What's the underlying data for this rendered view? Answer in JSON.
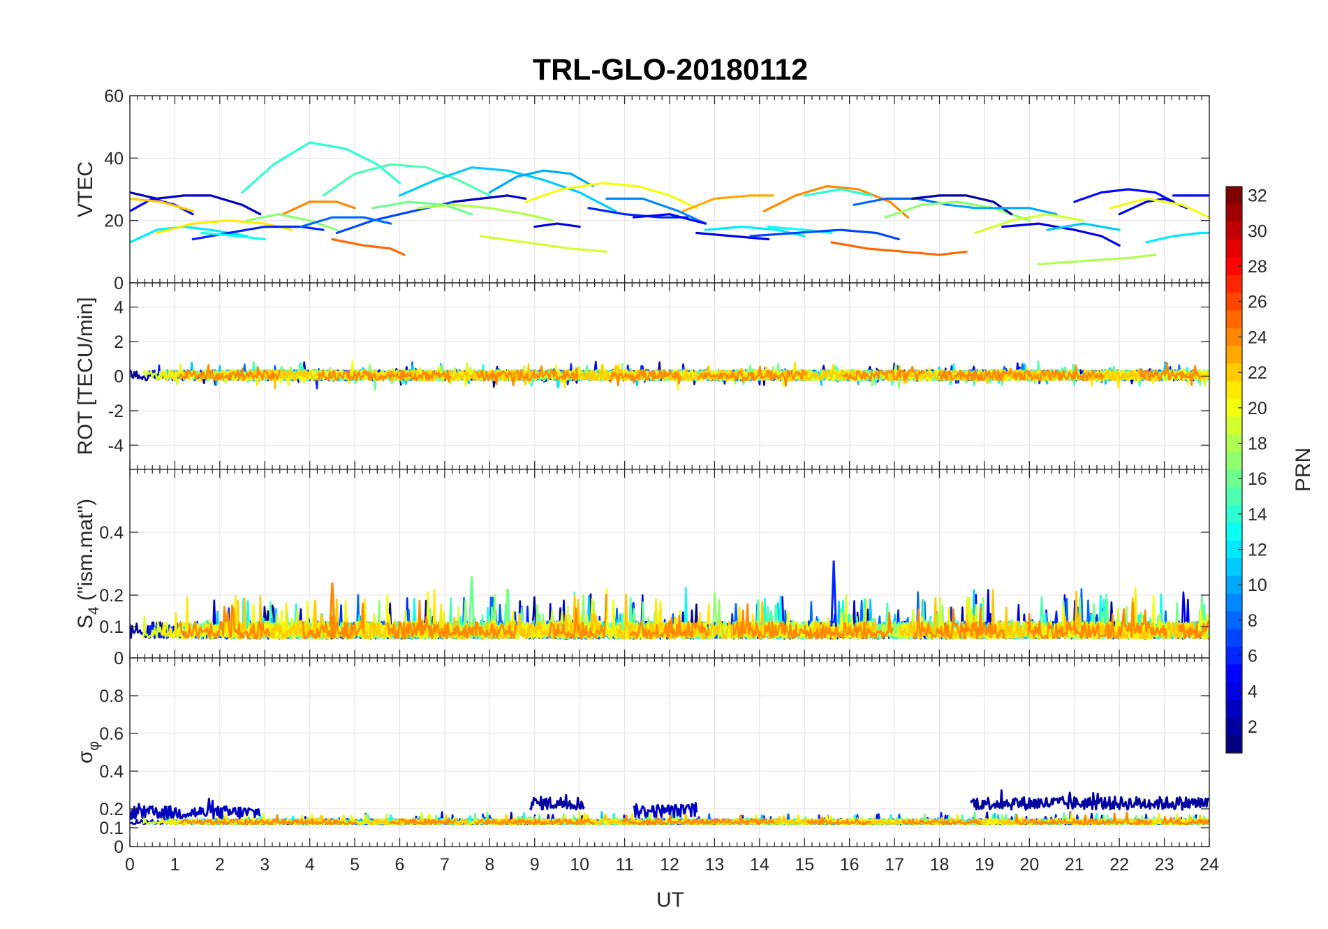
{
  "chart_data": {
    "type": "line",
    "title": "TRL-GLO-20180112",
    "xlabel": "UT",
    "xlim": [
      0,
      24
    ],
    "x_ticks": [
      "0",
      "1",
      "2",
      "3",
      "4",
      "5",
      "6",
      "7",
      "8",
      "9",
      "10",
      "11",
      "12",
      "13",
      "14",
      "15",
      "16",
      "17",
      "18",
      "19",
      "20",
      "21",
      "22",
      "23",
      "24"
    ],
    "colorbar": {
      "label": "PRN",
      "range": [
        1,
        32
      ],
      "colormap": "jet",
      "ticks": [
        "2",
        "4",
        "6",
        "8",
        "10",
        "12",
        "14",
        "16",
        "18",
        "20",
        "22",
        "24",
        "26",
        "28",
        "30",
        "32"
      ]
    },
    "panels": [
      {
        "id": "vtec",
        "ylabel": "VTEC",
        "ylim": [
          0,
          60
        ],
        "yticks": [
          0,
          20,
          40,
          60
        ],
        "ytick_labels": [
          "0",
          "20",
          "40",
          "60"
        ],
        "series": [
          {
            "prn": 14,
            "x": [
              2.5,
              3.2,
              4.0,
              4.8,
              5.5,
              6.0
            ],
            "y": [
              29,
              38,
              45,
              43,
              38,
              32
            ]
          },
          {
            "prn": 15,
            "x": [
              4.3,
              5.0,
              5.8,
              6.6,
              7.3,
              8.0
            ],
            "y": [
              28,
              35,
              38,
              37,
              33,
              28
            ]
          },
          {
            "prn": 11,
            "x": [
              6.0,
              6.8,
              7.6,
              8.4,
              9.2,
              10.0,
              10.8
            ],
            "y": [
              28,
              33,
              37,
              36,
              33,
              29,
              23
            ]
          },
          {
            "prn": 10,
            "x": [
              8.0,
              8.6,
              9.2,
              9.8,
              10.3
            ],
            "y": [
              29,
              34,
              36,
              35,
              31
            ]
          },
          {
            "prn": 20,
            "x": [
              8.8,
              9.6,
              10.5,
              11.3,
              12.0,
              12.6
            ],
            "y": [
              26,
              30,
              32,
              31,
              28,
              24
            ]
          },
          {
            "prn": 23,
            "x": [
              12.3,
              13.0,
              13.8,
              14.3
            ],
            "y": [
              23,
              27,
              28,
              28
            ]
          },
          {
            "prn": 24,
            "x": [
              14.1,
              14.8,
              15.5,
              16.2,
              16.9,
              17.3
            ],
            "y": [
              23,
              28,
              31,
              30,
              26,
              21
            ]
          },
          {
            "prn": 3,
            "x": [
              0,
              0.6,
              1.2,
              1.8,
              2.5,
              2.9
            ],
            "y": [
              29,
              27,
              28,
              28,
              25,
              22
            ]
          },
          {
            "prn": 5,
            "x": [
              0,
              0.5,
              1.0,
              1.4
            ],
            "y": [
              23,
              27,
              25,
              22
            ]
          },
          {
            "prn": 22,
            "x": [
              0,
              0.7,
              1.4
            ],
            "y": [
              27,
              26,
              23
            ]
          },
          {
            "prn": 12,
            "x": [
              0,
              0.6,
              1.2,
              1.8,
              2.6
            ],
            "y": [
              13,
              17,
              18,
              17,
              15
            ]
          },
          {
            "prn": 21,
            "x": [
              0.6,
              1.4,
              2.2,
              3.0,
              3.6
            ],
            "y": [
              16,
              19,
              20,
              19,
              17
            ]
          },
          {
            "prn": 6,
            "x": [
              1.4,
              2.2,
              3.0,
              3.8,
              4.3
            ],
            "y": [
              14,
              16,
              18,
              18,
              17
            ]
          },
          {
            "prn": 13,
            "x": [
              1.6,
              2.4,
              3.0
            ],
            "y": [
              16,
              15,
              14
            ]
          },
          {
            "prn": 24,
            "x": [
              3.4,
              4.0,
              4.6,
              5.0
            ],
            "y": [
              22,
              26,
              26,
              24
            ]
          },
          {
            "prn": 17,
            "x": [
              2.6,
              3.3,
              4.0,
              4.6
            ],
            "y": [
              20,
              22,
              20,
              17
            ]
          },
          {
            "prn": 7,
            "x": [
              4.6,
              5.4,
              6.0,
              6.6,
              7.2
            ],
            "y": [
              16,
              20,
              22,
              24,
              26
            ]
          },
          {
            "prn": 8,
            "x": [
              3.8,
              4.5,
              5.2,
              5.8
            ],
            "y": [
              18,
              21,
              21,
              19
            ]
          },
          {
            "prn": 16,
            "x": [
              5.4,
              6.2,
              7.0,
              7.6
            ],
            "y": [
              24,
              26,
              25,
              22
            ]
          },
          {
            "prn": 18,
            "x": [
              6.4,
              7.2,
              8.0,
              8.8,
              9.4
            ],
            "y": [
              24,
              25,
              24,
              22,
              20
            ]
          },
          {
            "prn": 25,
            "x": [
              4.5,
              5.2,
              5.8,
              6.1
            ],
            "y": [
              14,
              12,
              11,
              9
            ]
          },
          {
            "prn": 3,
            "x": [
              7.2,
              7.8,
              8.4,
              8.8
            ],
            "y": [
              26,
              27,
              28,
              27
            ]
          },
          {
            "prn": 4,
            "x": [
              9.0,
              9.5,
              10.0
            ],
            "y": [
              18,
              19,
              18
            ]
          },
          {
            "prn": 19,
            "x": [
              7.8,
              8.8,
              9.8,
              10.6
            ],
            "y": [
              15,
              13,
              11,
              10
            ]
          },
          {
            "prn": 6,
            "x": [
              10.2,
              11.0,
              11.8,
              12.4
            ],
            "y": [
              24,
              22,
              21,
              21
            ]
          },
          {
            "prn": 9,
            "x": [
              10.6,
              11.4,
              12.2,
              12.8
            ],
            "y": [
              27,
              27,
              23,
              19
            ]
          },
          {
            "prn": 5,
            "x": [
              11.2,
              12.0,
              12.8
            ],
            "y": [
              21,
              22,
              19
            ]
          },
          {
            "prn": 4,
            "x": [
              12.6,
              13.4,
              14.2
            ],
            "y": [
              16,
              15,
              14
            ]
          },
          {
            "prn": 12,
            "x": [
              12.8,
              13.6,
              14.4,
              15.0
            ],
            "y": [
              17,
              18,
              17,
              15
            ]
          },
          {
            "prn": 13,
            "x": [
              14.2,
              15.0,
              15.6
            ],
            "y": [
              18,
              17,
              16
            ]
          },
          {
            "prn": 7,
            "x": [
              13.8,
              14.8,
              15.8,
              16.6,
              17.1
            ],
            "y": [
              15,
              16,
              17,
              16,
              14
            ]
          },
          {
            "prn": 25,
            "x": [
              15.6,
              16.4,
              17.2,
              18.0,
              18.6
            ],
            "y": [
              13,
              11,
              10,
              9,
              10
            ]
          },
          {
            "prn": 14,
            "x": [
              15.0,
              15.8,
              16.5
            ],
            "y": [
              28,
              30,
              28
            ]
          },
          {
            "prn": 8,
            "x": [
              16.1,
              16.8,
              17.5,
              18.2
            ],
            "y": [
              25,
              27,
              27,
              25
            ]
          },
          {
            "prn": 17,
            "x": [
              16.8,
              17.6,
              18.4,
              19.2,
              20.0
            ],
            "y": [
              21,
              25,
              26,
              24,
              20
            ]
          },
          {
            "prn": 2,
            "x": [
              17.4,
              18.0,
              18.6,
              19.2,
              19.6
            ],
            "y": [
              27,
              28,
              28,
              26,
              22
            ]
          },
          {
            "prn": 10,
            "x": [
              18.2,
              18.8,
              19.4,
              20.0,
              20.6
            ],
            "y": [
              25,
              24,
              24,
              24,
              22
            ]
          },
          {
            "prn": 19,
            "x": [
              18.8,
              19.6,
              20.4,
              21.2
            ],
            "y": [
              16,
              20,
              22,
              20
            ]
          },
          {
            "prn": 4,
            "x": [
              19.4,
              20.2,
              21.0,
              21.6,
              22.0
            ],
            "y": [
              18,
              19,
              17,
              15,
              12
            ]
          },
          {
            "prn": 11,
            "x": [
              20.4,
              21.2,
              22.0
            ],
            "y": [
              17,
              19,
              17
            ]
          },
          {
            "prn": 5,
            "x": [
              21.0,
              21.6,
              22.2,
              22.8,
              23.2
            ],
            "y": [
              26,
              29,
              30,
              29,
              26
            ]
          },
          {
            "prn": 4,
            "x": [
              22.0,
              22.6,
              23.0,
              23.5
            ],
            "y": [
              22,
              26,
              27,
              24
            ]
          },
          {
            "prn": 20,
            "x": [
              21.8,
              22.6,
              23.4,
              24.0
            ],
            "y": [
              24,
              27,
              25,
              21
            ]
          },
          {
            "prn": 18,
            "x": [
              20.2,
              21.2,
              22.2,
              22.8
            ],
            "y": [
              6,
              7,
              8,
              9
            ]
          },
          {
            "prn": 12,
            "x": [
              22.6,
              23.2,
              23.8,
              24.0
            ],
            "y": [
              13,
              15,
              16,
              16
            ]
          },
          {
            "prn": 5,
            "x": [
              23.2,
              23.6,
              24.0
            ],
            "y": [
              28,
              28,
              28
            ]
          }
        ]
      },
      {
        "id": "rot",
        "ylabel": "ROT [TECU/min]",
        "ylim": [
          -5.4,
          5.4
        ],
        "yticks": [
          -4,
          -2,
          0,
          2,
          4
        ],
        "ytick_labels": [
          "-4",
          "-2",
          "0",
          "2",
          "4"
        ],
        "noise": {
          "mode": "around",
          "base": 0.05,
          "amp": 0.3,
          "spike": 0.55,
          "spike_rate": 0.05
        }
      },
      {
        "id": "s4",
        "ylabel": "S4 (\"ism.mat\")",
        "ylabel_main": "S",
        "ylabel_sub": "4",
        "ylabel_rest": " (\"ism.mat\")",
        "ylim": [
          0,
          0.6
        ],
        "yticks": [
          0,
          0.1,
          0.2,
          0.4
        ],
        "ytick_labels": [
          "0",
          "0.1",
          "0.2",
          "0.4"
        ],
        "noise": {
          "mode": "above",
          "base": 0.085,
          "amp": 0.04,
          "spike": 0.11,
          "spike_rate": 0.05
        },
        "notable_peaks": [
          {
            "x": 15.65,
            "y": 0.31
          },
          {
            "x": 4.5,
            "y": 0.24
          },
          {
            "x": 7.6,
            "y": 0.26
          }
        ]
      },
      {
        "id": "sigma",
        "ylabel": "σφ",
        "ylabel_main": "σ",
        "ylabel_sub": "φ",
        "ylim": [
          0,
          1
        ],
        "yticks": [
          0,
          0.1,
          0.2,
          0.4,
          0.6,
          0.8
        ],
        "ytick_labels": [
          "0",
          "0.1",
          "0.2",
          "0.4",
          "0.6",
          "0.8"
        ],
        "noise": {
          "mode": "above",
          "base": 0.13,
          "amp": 0.02,
          "spike": 0.04,
          "spike_rate": 0.04
        },
        "elevated_segments": [
          {
            "prn": 3,
            "x": [
              0,
              2.9
            ],
            "level": 0.18
          },
          {
            "prn": 2,
            "x": [
              8.9,
              10.1
            ],
            "level": 0.23
          },
          {
            "prn": 3,
            "x": [
              11.2,
              12.6
            ],
            "level": 0.19
          },
          {
            "prn": 2,
            "x": [
              18.7,
              24.0
            ],
            "level": 0.23
          }
        ]
      }
    ]
  }
}
